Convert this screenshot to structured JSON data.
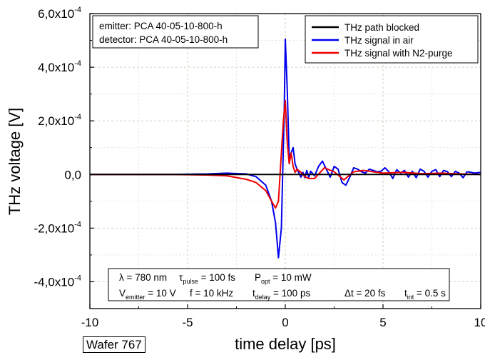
{
  "chart_data": {
    "type": "line",
    "xlabel": "time delay [ps]",
    "ylabel": "THz voltage [V]",
    "xlim": [
      -10,
      10
    ],
    "ylim": [
      -0.0005,
      0.0006
    ],
    "grid": true,
    "x_ticks": [
      "-10",
      "-5",
      "0",
      "5",
      "10"
    ],
    "y_ticks": [
      {
        "value": 0.0006,
        "mantissa": "6,0x10",
        "exp": "-4"
      },
      {
        "value": 0.0004,
        "mantissa": "4,0x10",
        "exp": "-4"
      },
      {
        "value": 0.0002,
        "mantissa": "2,0x10",
        "exp": "-4"
      },
      {
        "value": 0.0,
        "mantissa": "0,0",
        "exp": ""
      },
      {
        "value": -0.0002,
        "mantissa": "-2,0x10",
        "exp": "-4"
      },
      {
        "value": -0.0004,
        "mantissa": "-4,0x10",
        "exp": "-4"
      }
    ],
    "legend_position": "top-right",
    "series": [
      {
        "name": "THz path blocked",
        "color": "#000000",
        "x": [
          -10,
          10
        ],
        "y": [
          0,
          0
        ]
      },
      {
        "name": "THz signal in air",
        "color": "#0000ee",
        "x": [
          -10,
          -6,
          -4,
          -3,
          -2,
          -1.5,
          -1,
          -0.7,
          -0.5,
          -0.35,
          -0.2,
          -0.05,
          0.0,
          0.1,
          0.2,
          0.3,
          0.4,
          0.5,
          0.6,
          0.7,
          0.8,
          0.9,
          1.0,
          1.1,
          1.2,
          1.3,
          1.5,
          1.7,
          1.9,
          2.1,
          2.3,
          2.5,
          2.7,
          2.9,
          3.1,
          3.3,
          3.5,
          3.7,
          3.9,
          4.1,
          4.3,
          4.5,
          4.7,
          4.9,
          5.1,
          5.3,
          5.5,
          5.7,
          5.9,
          6.1,
          6.3,
          6.5,
          6.7,
          6.9,
          7.1,
          7.3,
          7.5,
          7.7,
          7.9,
          8.1,
          8.3,
          8.5,
          8.7,
          8.9,
          9.1,
          9.3,
          9.5,
          9.7,
          10
        ],
        "y": [
          0,
          0,
          2e-06,
          5e-06,
          2e-06,
          -8e-06,
          -4e-05,
          -0.0001,
          -0.00018,
          -0.00031,
          -0.0002,
          0.00025,
          0.000505,
          0.00032,
          6e-05,
          8e-05,
          0.0001,
          4e-05,
          2e-05,
          5e-06,
          -1e-05,
          8e-06,
          -1.2e-05,
          1.5e-05,
          -1e-05,
          1.2e-05,
          -5e-06,
          3e-05,
          5e-05,
          2e-05,
          -1e-05,
          3e-05,
          2e-05,
          -3e-05,
          -4e-05,
          -1e-05,
          2.5e-05,
          2e-05,
          1e-05,
          5e-06,
          2e-05,
          1.5e-05,
          1e-05,
          1.2e-05,
          2.5e-05,
          1e-05,
          -1.5e-05,
          1.8e-05,
          5e-06,
          1.5e-05,
          -1e-05,
          1.2e-05,
          -1.2e-05,
          2e-05,
          1.2e-05,
          -1e-05,
          1.2e-05,
          1.8e-05,
          -8e-06,
          1.5e-05,
          1e-05,
          -8e-06,
          1.2e-05,
          5e-06,
          -1.2e-05,
          1e-05,
          8e-06,
          5e-06,
          8e-06
        ]
      },
      {
        "name": "THz signal with N2-purge",
        "color": "#ee0000",
        "x": [
          -10,
          -6,
          -4,
          -3,
          -2,
          -1.5,
          -1,
          -0.7,
          -0.5,
          -0.35,
          -0.25,
          -0.1,
          0.0,
          0.1,
          0.2,
          0.3,
          0.4,
          0.5,
          0.6,
          0.8,
          1.0,
          1.2,
          1.5,
          2.0,
          2.5,
          3.0,
          3.5,
          4.0,
          5.0,
          6.0,
          7.0,
          8.0,
          9.0,
          10
        ],
        "y": [
          0,
          0,
          -2e-06,
          -5e-06,
          -1.8e-05,
          -3e-05,
          -6e-05,
          -0.0001,
          -0.000125,
          -0.0001,
          2e-05,
          0.0002,
          0.000275,
          0.00012,
          4e-05,
          8e-05,
          3e-05,
          8e-06,
          2e-05,
          8e-06,
          -8e-06,
          -1.5e-05,
          -1.5e-05,
          2.5e-05,
          1e-05,
          -2e-05,
          1e-05,
          1.5e-05,
          5e-06,
          8e-06,
          3e-06,
          5e-06,
          2e-06,
          0.0
        ]
      }
    ],
    "annotations": {
      "top_left": [
        "emitter:  PCA 40-05-10-800-h",
        "detector:  PCA 40-05-10-800-h"
      ],
      "bottom": {
        "lambda": "λ = 780 nm",
        "tau_main": "τ",
        "tau_sub": "pulse",
        "tau_rest": " = 100 fs",
        "p_main": "P",
        "p_sub": "opt",
        "p_rest": " = 10 mW",
        "v_main": "V",
        "v_sub": "emitter",
        "v_rest": " = 10 V",
        "f": "f = 10 kHz",
        "t_main": "t",
        "t_sub": "delay",
        "t_rest": " = 100 ps",
        "dt": "Δt = 20 fs",
        "ti_main": "t",
        "ti_sub": "int",
        "ti_rest": " = 0.5 s"
      }
    }
  },
  "footer": {
    "sample": "Wafer 767"
  }
}
